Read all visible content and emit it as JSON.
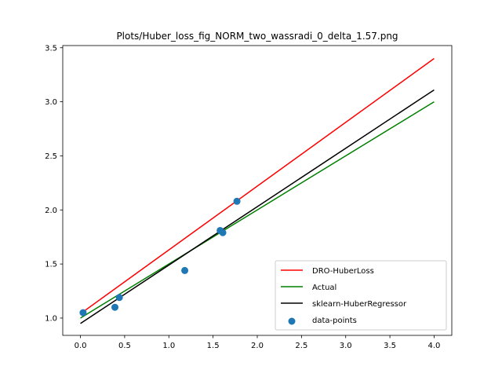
{
  "chart_data": {
    "type": "line",
    "title": "Plots/Huber_loss_fig_NORM_two_wassradi_0_delta_1.57.png",
    "xlabel": "",
    "ylabel": "",
    "xlim": [
      -0.2,
      4.2
    ],
    "ylim": [
      0.84,
      3.52
    ],
    "x_ticks": [
      0.0,
      0.5,
      1.0,
      1.5,
      2.0,
      2.5,
      3.0,
      3.5,
      4.0
    ],
    "x_tick_labels": [
      "0.0",
      "0.5",
      "1.0",
      "1.5",
      "2.0",
      "2.5",
      "3.0",
      "3.5",
      "4.0"
    ],
    "y_ticks": [
      1.0,
      1.5,
      2.0,
      2.5,
      3.0,
      3.5
    ],
    "y_tick_labels": [
      "1.0",
      "1.5",
      "2.0",
      "2.5",
      "3.0",
      "3.5"
    ],
    "grid": false,
    "legend_position": "bottom-right",
    "series": [
      {
        "name": "DRO-HuberLoss",
        "kind": "line",
        "color": "#ff0000",
        "x": [
          0.0,
          4.0
        ],
        "y": [
          1.04,
          3.4
        ]
      },
      {
        "name": "Actual",
        "kind": "line",
        "color": "#008000",
        "x": [
          0.0,
          4.0
        ],
        "y": [
          1.0,
          3.0
        ]
      },
      {
        "name": "sklearn-HuberRegressor",
        "kind": "line",
        "color": "#000000",
        "x": [
          0.0,
          4.0
        ],
        "y": [
          0.95,
          3.11
        ]
      },
      {
        "name": "data-points",
        "kind": "scatter",
        "color": "#1f77b4",
        "x": [
          0.03,
          0.39,
          0.44,
          1.18,
          1.58,
          1.61,
          1.77
        ],
        "y": [
          1.05,
          1.1,
          1.19,
          1.44,
          1.81,
          1.79,
          2.08
        ]
      }
    ]
  }
}
